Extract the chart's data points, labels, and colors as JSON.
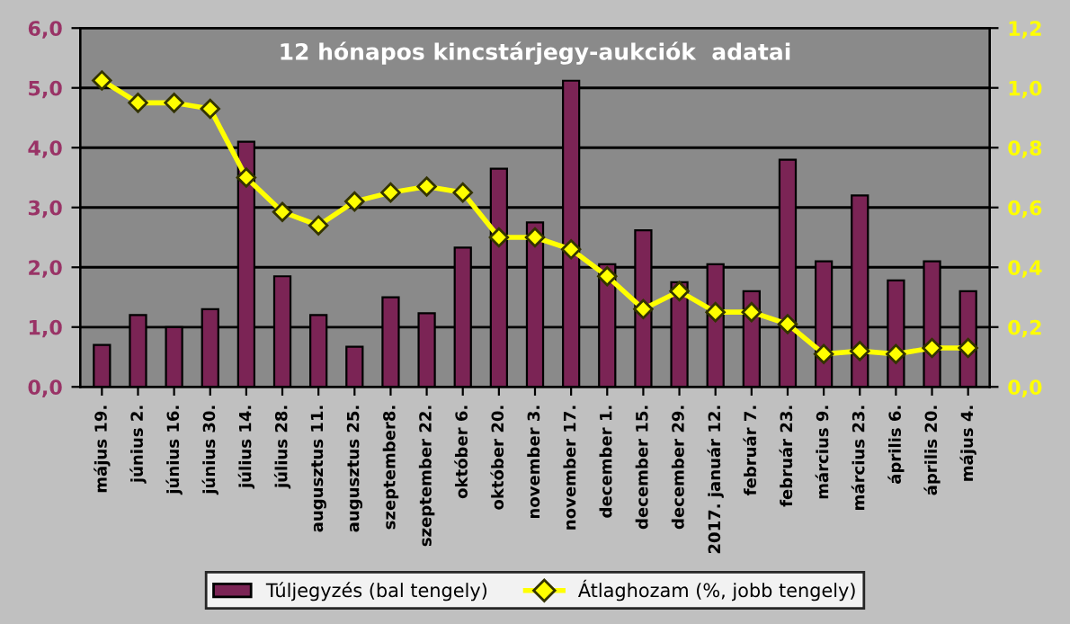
{
  "chart_data": {
    "type": "bar",
    "title": "12 hónapos kincstárjegy-aukciók  adatai",
    "categories": [
      "május 19.",
      "június 2.",
      "június 16.",
      "június 30.",
      "július 14.",
      "július 28.",
      "augusztus 11.",
      "augusztus 25.",
      "szeptember8.",
      "szeptember 22.",
      "október 6.",
      "október 20.",
      "november 3.",
      "november 17.",
      "december 1.",
      "december 15.",
      "december 29.",
      "2017. január 12.",
      "február 7.",
      "február 23.",
      "március 9.",
      "március 23.",
      "április 6.",
      "április 20.",
      "május 4."
    ],
    "series": [
      {
        "name": "Túljegyzés (bal tengely)",
        "color": "#7b2455",
        "values": [
          0.7,
          1.2,
          1.0,
          1.3,
          4.1,
          1.85,
          1.2,
          0.67,
          1.5,
          1.23,
          2.33,
          3.65,
          2.75,
          5.12,
          2.05,
          2.62,
          1.75,
          2.05,
          1.6,
          3.8,
          2.1,
          3.2,
          1.78,
          2.1,
          1.6
        ]
      },
      {
        "name": "Átlaghozam (%, jobb tengely)",
        "type": "line",
        "axis": "y2",
        "color": "#ffff00",
        "marker": "diamond",
        "values": [
          1.025,
          0.95,
          0.95,
          0.93,
          0.7,
          0.585,
          0.54,
          0.62,
          0.65,
          0.67,
          0.65,
          0.5,
          0.5,
          0.46,
          0.37,
          0.26,
          0.32,
          0.25,
          0.25,
          0.21,
          0.11,
          0.12,
          0.11,
          0.13,
          0.13
        ]
      }
    ],
    "ylim": [
      0,
      6
    ],
    "yticks": [
      {
        "value": 0,
        "label": "0,0"
      },
      {
        "value": 1,
        "label": "1,0"
      },
      {
        "value": 2,
        "label": "2,0"
      },
      {
        "value": 3,
        "label": "3,0"
      },
      {
        "value": 4,
        "label": "4,0"
      },
      {
        "value": 5,
        "label": "5,0"
      },
      {
        "value": 6,
        "label": "6,0"
      }
    ],
    "y2lim": [
      0,
      1.2
    ],
    "y2ticks": [
      {
        "value": 0,
        "label": "0,0"
      },
      {
        "value": 0.2,
        "label": "0,2"
      },
      {
        "value": 0.4,
        "label": "0,4"
      },
      {
        "value": 0.6,
        "label": "0,6"
      },
      {
        "value": 0.8,
        "label": "0,8"
      },
      {
        "value": 1.0,
        "label": "1,0"
      },
      {
        "value": 1.2,
        "label": "1,2"
      }
    ],
    "grid": "y",
    "legend": "bottom"
  }
}
